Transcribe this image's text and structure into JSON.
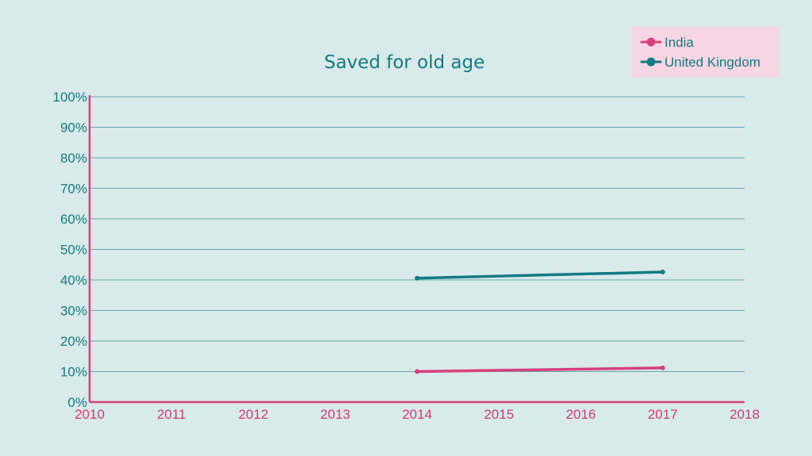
{
  "chart_data": {
    "type": "line",
    "title": "Saved for old age",
    "xlabel": "",
    "ylabel": "",
    "x_ticks": [
      "2010",
      "2011",
      "2012",
      "2013",
      "2014",
      "2015",
      "2016",
      "2017",
      "2018"
    ],
    "y_ticks": [
      "0%",
      "10%",
      "20%",
      "30%",
      "40%",
      "50%",
      "60%",
      "70%",
      "80%",
      "90%",
      "100%"
    ],
    "xlim": [
      2010,
      2018
    ],
    "ylim": [
      0,
      100
    ],
    "grid": true,
    "legend_position": "top-right",
    "series": [
      {
        "name": "India",
        "color": "#d6407e",
        "x": [
          2014,
          2017
        ],
        "y": [
          10.0,
          11.2
        ]
      },
      {
        "name": "United Kingdom",
        "color": "#137a82",
        "x": [
          2014,
          2017
        ],
        "y": [
          40.6,
          42.6
        ]
      }
    ]
  },
  "colors": {
    "background": "#d9eaea",
    "grid": "#3d8f95",
    "axis": "#d6407e",
    "legend_background": "#f6d6e2",
    "title": "#137a82",
    "y_tick_text": "#137a82",
    "x_tick_text": "#cc3a7a"
  }
}
